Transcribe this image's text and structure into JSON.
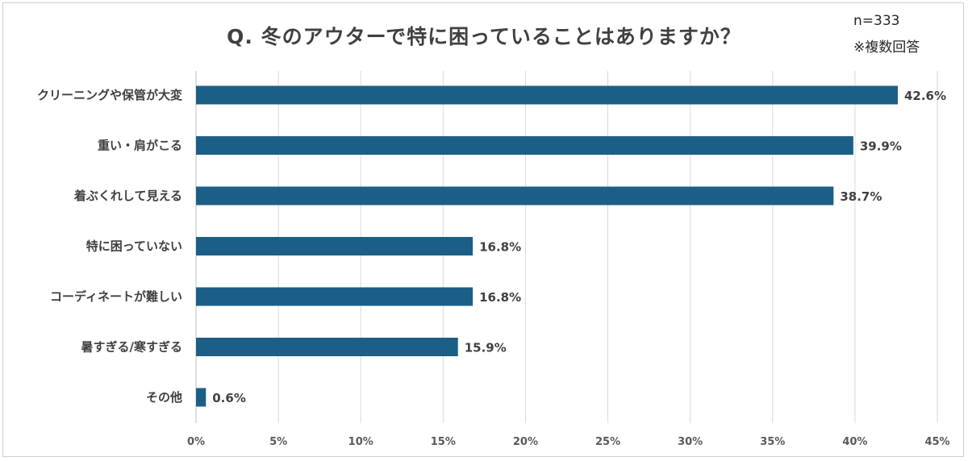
{
  "chart_data": {
    "type": "bar",
    "orientation": "horizontal",
    "title": "Q. 冬のアウターで特に困っていることはありますか？",
    "notes": [
      "n=333",
      "※複数回答"
    ],
    "categories": [
      "クリーニングや保管が大変",
      "重い・肩がこる",
      "着ぶくれして見える",
      "特に困っていない",
      "コーディネートが難しい",
      "暑すぎる/寒すぎる",
      "その他"
    ],
    "values": [
      42.6,
      39.9,
      38.7,
      16.8,
      16.8,
      15.9,
      0.6
    ],
    "value_labels": [
      "42.6%",
      "39.9%",
      "38.7%",
      "16.8%",
      "16.8%",
      "15.9%",
      "0.6%"
    ],
    "xlim": [
      0,
      45
    ],
    "xticks": [
      0,
      5,
      10,
      15,
      20,
      25,
      30,
      35,
      40,
      45
    ],
    "xtick_labels": [
      "0%",
      "5%",
      "10%",
      "15%",
      "20%",
      "25%",
      "30%",
      "35%",
      "40%",
      "45%"
    ],
    "grid": "vertical",
    "legend": "none",
    "colors": {
      "bar": "#1b5f86",
      "grid": "#d9d9d9",
      "text": "#404040"
    }
  }
}
